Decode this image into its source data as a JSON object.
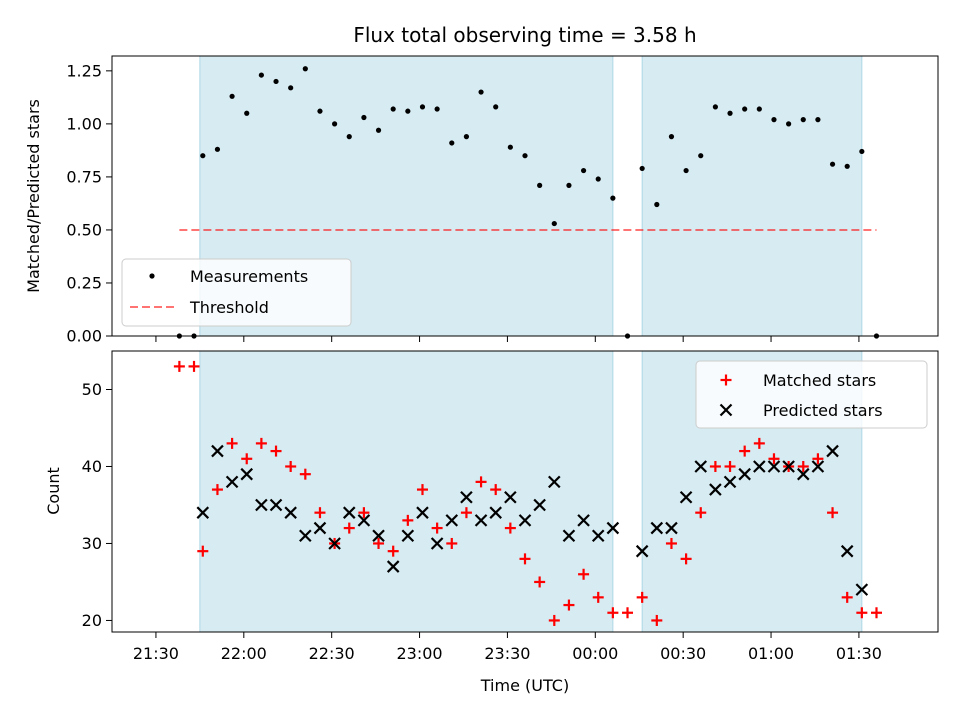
{
  "title": "Flux total observing time = 3.58 h",
  "colors": {
    "shade": "#add8e6",
    "measurement": "#000000",
    "threshold": "#ff0000",
    "matched": "#ff0000",
    "predicted": "#000000"
  },
  "chart_data": [
    {
      "type": "scatter",
      "ylabel": "Matched/Predicted stars",
      "ylim": [
        0,
        1.32
      ],
      "yticks": [
        0.0,
        0.25,
        0.5,
        0.75,
        1.0,
        1.25
      ],
      "ytick_labels": [
        "0.00",
        "0.25",
        "0.50",
        "0.75",
        "1.00",
        "1.25"
      ],
      "xlim_hours": [
        -2.75,
        1.95
      ],
      "shaded_intervals": [
        [
          "21:45",
          "00:06"
        ],
        [
          "00:16",
          "01:31"
        ]
      ],
      "threshold": {
        "name": "Threshold",
        "value": 0.5,
        "x_start": "21:38",
        "x_end": "01:36",
        "style": "dashed"
      },
      "legend": {
        "placement": "lower-left",
        "entries": [
          "Measurements",
          "Threshold"
        ]
      },
      "series": [
        {
          "name": "Measurements",
          "marker": "dot",
          "points": [
            [
              "21:38",
              0.0
            ],
            [
              "21:43",
              0.0
            ],
            [
              "21:46",
              0.85
            ],
            [
              "21:51",
              0.88
            ],
            [
              "21:56",
              1.13
            ],
            [
              "22:01",
              1.05
            ],
            [
              "22:06",
              1.23
            ],
            [
              "22:11",
              1.2
            ],
            [
              "22:16",
              1.17
            ],
            [
              "22:21",
              1.26
            ],
            [
              "22:26",
              1.06
            ],
            [
              "22:31",
              1.0
            ],
            [
              "22:36",
              0.94
            ],
            [
              "22:41",
              1.03
            ],
            [
              "22:46",
              0.97
            ],
            [
              "22:51",
              1.07
            ],
            [
              "22:56",
              1.06
            ],
            [
              "23:01",
              1.08
            ],
            [
              "23:06",
              1.07
            ],
            [
              "23:11",
              0.91
            ],
            [
              "23:16",
              0.94
            ],
            [
              "23:21",
              1.15
            ],
            [
              "23:26",
              1.08
            ],
            [
              "23:31",
              0.89
            ],
            [
              "23:36",
              0.85
            ],
            [
              "23:41",
              0.71
            ],
            [
              "23:46",
              0.53
            ],
            [
              "23:51",
              0.71
            ],
            [
              "23:56",
              0.78
            ],
            [
              "00:01",
              0.74
            ],
            [
              "00:06",
              0.65
            ],
            [
              "00:11",
              0.0
            ],
            [
              "00:16",
              0.79
            ],
            [
              "00:21",
              0.62
            ],
            [
              "00:26",
              0.94
            ],
            [
              "00:31",
              0.78
            ],
            [
              "00:36",
              0.85
            ],
            [
              "00:41",
              1.08
            ],
            [
              "00:46",
              1.05
            ],
            [
              "00:51",
              1.07
            ],
            [
              "00:56",
              1.07
            ],
            [
              "01:01",
              1.02
            ],
            [
              "01:06",
              1.0
            ],
            [
              "01:11",
              1.02
            ],
            [
              "01:16",
              1.02
            ],
            [
              "01:21",
              0.81
            ],
            [
              "01:26",
              0.8
            ],
            [
              "01:31",
              0.87
            ],
            [
              "01:36",
              0.0
            ]
          ]
        }
      ]
    },
    {
      "type": "scatter",
      "xlabel": "Time (UTC)",
      "ylabel": "Count",
      "ylim": [
        18.5,
        55
      ],
      "yticks": [
        20,
        30,
        40,
        50
      ],
      "ytick_labels": [
        "20",
        "30",
        "40",
        "50"
      ],
      "xticks": [
        "21:30",
        "22:00",
        "22:30",
        "23:00",
        "23:30",
        "00:00",
        "00:30",
        "01:00",
        "01:30"
      ],
      "xlim_hours": [
        -2.75,
        1.95
      ],
      "shaded_intervals": [
        [
          "21:45",
          "00:06"
        ],
        [
          "00:16",
          "01:31"
        ]
      ],
      "legend": {
        "placement": "upper-right",
        "entries": [
          "Matched stars",
          "Predicted stars"
        ]
      },
      "series": [
        {
          "name": "Matched stars",
          "marker": "plus",
          "points": [
            [
              "21:38",
              53
            ],
            [
              "21:43",
              53
            ],
            [
              "21:46",
              29
            ],
            [
              "21:51",
              37
            ],
            [
              "21:56",
              43
            ],
            [
              "22:01",
              41
            ],
            [
              "22:06",
              43
            ],
            [
              "22:11",
              42
            ],
            [
              "22:16",
              40
            ],
            [
              "22:21",
              39
            ],
            [
              "22:26",
              34
            ],
            [
              "22:31",
              30
            ],
            [
              "22:36",
              32
            ],
            [
              "22:41",
              34
            ],
            [
              "22:46",
              30
            ],
            [
              "22:51",
              29
            ],
            [
              "22:56",
              33
            ],
            [
              "23:01",
              37
            ],
            [
              "23:06",
              32
            ],
            [
              "23:11",
              30
            ],
            [
              "23:16",
              34
            ],
            [
              "23:21",
              38
            ],
            [
              "23:26",
              37
            ],
            [
              "23:31",
              32
            ],
            [
              "23:36",
              28
            ],
            [
              "23:41",
              25
            ],
            [
              "23:46",
              20
            ],
            [
              "23:51",
              22
            ],
            [
              "23:56",
              26
            ],
            [
              "00:01",
              23
            ],
            [
              "00:06",
              21
            ],
            [
              "00:11",
              21
            ],
            [
              "00:16",
              23
            ],
            [
              "00:21",
              20
            ],
            [
              "00:26",
              30
            ],
            [
              "00:31",
              28
            ],
            [
              "00:36",
              34
            ],
            [
              "00:41",
              40
            ],
            [
              "00:46",
              40
            ],
            [
              "00:51",
              42
            ],
            [
              "00:56",
              43
            ],
            [
              "01:01",
              41
            ],
            [
              "01:06",
              40
            ],
            [
              "01:11",
              40
            ],
            [
              "01:16",
              41
            ],
            [
              "01:21",
              34
            ],
            [
              "01:26",
              23
            ],
            [
              "01:31",
              21
            ],
            [
              "01:36",
              21
            ]
          ]
        },
        {
          "name": "Predicted stars",
          "marker": "x",
          "points": [
            [
              "21:46",
              34
            ],
            [
              "21:51",
              42
            ],
            [
              "21:56",
              38
            ],
            [
              "22:01",
              39
            ],
            [
              "22:06",
              35
            ],
            [
              "22:11",
              35
            ],
            [
              "22:16",
              34
            ],
            [
              "22:21",
              31
            ],
            [
              "22:26",
              32
            ],
            [
              "22:31",
              30
            ],
            [
              "22:36",
              34
            ],
            [
              "22:41",
              33
            ],
            [
              "22:46",
              31
            ],
            [
              "22:51",
              27
            ],
            [
              "22:56",
              31
            ],
            [
              "23:01",
              34
            ],
            [
              "23:06",
              30
            ],
            [
              "23:11",
              33
            ],
            [
              "23:16",
              36
            ],
            [
              "23:21",
              33
            ],
            [
              "23:26",
              34
            ],
            [
              "23:31",
              36
            ],
            [
              "23:36",
              33
            ],
            [
              "23:41",
              35
            ],
            [
              "23:46",
              38
            ],
            [
              "23:51",
              31
            ],
            [
              "23:56",
              33
            ],
            [
              "00:01",
              31
            ],
            [
              "00:06",
              32
            ],
            [
              "00:16",
              29
            ],
            [
              "00:21",
              32
            ],
            [
              "00:26",
              32
            ],
            [
              "00:31",
              36
            ],
            [
              "00:36",
              40
            ],
            [
              "00:41",
              37
            ],
            [
              "00:46",
              38
            ],
            [
              "00:51",
              39
            ],
            [
              "00:56",
              40
            ],
            [
              "01:01",
              40
            ],
            [
              "01:06",
              40
            ],
            [
              "01:11",
              39
            ],
            [
              "01:16",
              40
            ],
            [
              "01:21",
              42
            ],
            [
              "01:26",
              29
            ],
            [
              "01:31",
              24
            ]
          ]
        }
      ]
    }
  ]
}
